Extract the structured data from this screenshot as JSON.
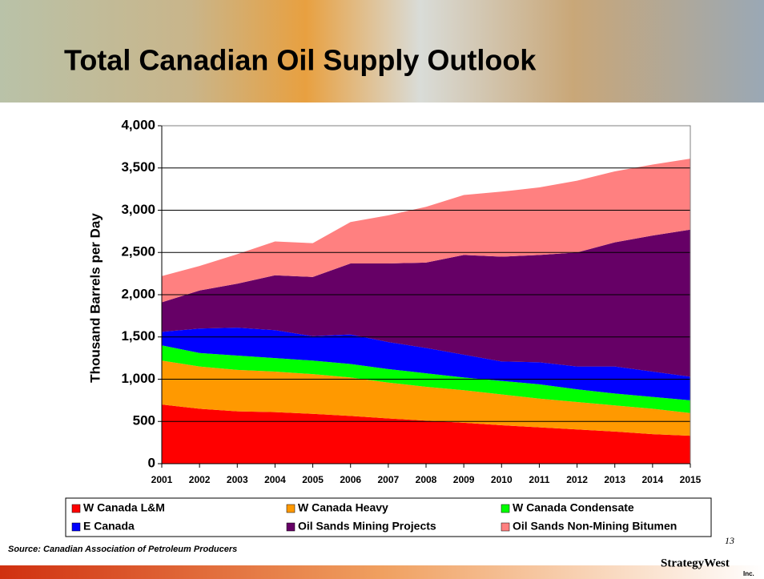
{
  "chart_data": {
    "type": "stacked-area",
    "title": "Total Canadian Oil Supply Outlook",
    "y_label": "Thousand Barrels per Day",
    "source": "Source: Canadian Association of Petroleum Producers",
    "categories": [
      "2001",
      "2002",
      "2003",
      "2004",
      "2005",
      "2006",
      "2007",
      "2008",
      "2009",
      "2010",
      "2011",
      "2012",
      "2013",
      "2014",
      "2015"
    ],
    "series": [
      {
        "name": "W Canada L&M",
        "color": "#ff0000",
        "values": [
          700,
          650,
          620,
          610,
          590,
          565,
          535,
          510,
          485,
          455,
          430,
          405,
          380,
          350,
          330
        ]
      },
      {
        "name": "W Canada Heavy",
        "color": "#ff9900",
        "values": [
          520,
          500,
          490,
          480,
          470,
          455,
          425,
          400,
          385,
          365,
          340,
          325,
          310,
          300,
          270
        ]
      },
      {
        "name": "W Canada Condensate",
        "color": "#00ff00",
        "values": [
          180,
          160,
          170,
          160,
          160,
          160,
          160,
          160,
          150,
          160,
          170,
          150,
          140,
          140,
          150
        ]
      },
      {
        "name": "E Canada",
        "color": "#0000ff",
        "values": [
          160,
          290,
          330,
          330,
          290,
          350,
          320,
          300,
          270,
          230,
          260,
          270,
          320,
          300,
          280
        ]
      },
      {
        "name": "Oil Sands Mining Projects",
        "color": "#660066",
        "values": [
          350,
          450,
          520,
          650,
          700,
          840,
          930,
          1010,
          1180,
          1240,
          1270,
          1350,
          1470,
          1610,
          1740
        ]
      },
      {
        "name": "Oil Sands Non-Mining Bitumen",
        "color": "#ff8080",
        "values": [
          310,
          290,
          350,
          400,
          400,
          490,
          570,
          660,
          710,
          770,
          800,
          850,
          840,
          840,
          840
        ]
      }
    ],
    "ylim": [
      0,
      4000
    ],
    "yticks": [
      0,
      500,
      {
        "value": 1000,
        "label": "1,000"
      },
      {
        "value": 1500,
        "label": "1,500"
      },
      {
        "value": 2000,
        "label": "2,000"
      },
      {
        "value": 2500,
        "label": "2,500"
      },
      {
        "value": 3000,
        "label": "3,000"
      },
      {
        "value": 3500,
        "label": "3,500"
      },
      {
        "value": 4000,
        "label": "4,000"
      }
    ],
    "grid": true
  },
  "slide": {
    "page_number": "13",
    "logo": "StrategyWest",
    "logo_sub": "Inc."
  }
}
